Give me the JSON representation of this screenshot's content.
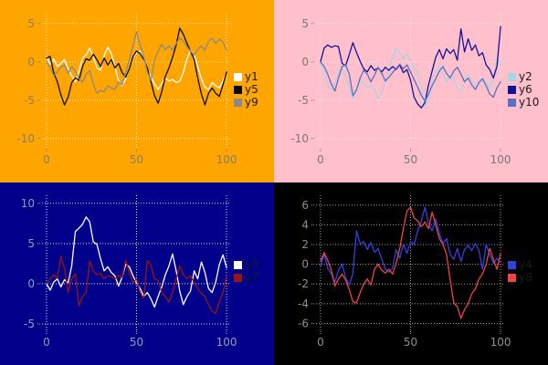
{
  "chart_data": [
    {
      "type": "line",
      "name": "top-left",
      "background": "#FFA500",
      "grid_color": "#f2e8d2",
      "tick_color": "#857f6e",
      "legend_text_color": "#1a1a1a",
      "grid": true,
      "legend_position": "center right",
      "xlim": [
        -2.5,
        102
      ],
      "ylim": [
        -11.2,
        6.4
      ],
      "xticks": [
        {
          "value": 0,
          "label": "0"
        },
        {
          "value": 50,
          "label": "50"
        },
        {
          "value": 100,
          "label": "100"
        }
      ],
      "yticks": [
        {
          "value": 5,
          "label": "5"
        },
        {
          "value": 0,
          "label": "0"
        },
        {
          "value": -5,
          "label": "-5"
        },
        {
          "value": -10,
          "label": "-10"
        }
      ],
      "series": [
        {
          "name": "y1",
          "color": "#ffffff",
          "x_step": 2,
          "values": [
            0.7,
            -0.3,
            0.4,
            -0.6,
            -0.2,
            0.3,
            -0.9,
            -1.8,
            -2.6,
            -1.2,
            0.5,
            0.9,
            1.8,
            0.6,
            -0.8,
            -1.1,
            0.8,
            1.9,
            1.1,
            -0.6,
            -2.5,
            -3.1,
            -2.2,
            -0.8,
            0.6,
            1.2,
            1.4,
            0.2,
            -1.0,
            -1.9,
            -2.9,
            -3.6,
            -2.8,
            -2.1,
            -2.5,
            -2.3,
            -2.7,
            -2.5,
            -1.4,
            0.4,
            1.5,
            0.9,
            -0.6,
            -2.2,
            -3.3,
            -3.6,
            -2.7,
            -3.1,
            -3.4,
            -2.5,
            -1.4
          ]
        },
        {
          "name": "y5",
          "color": "#0a0a0a",
          "x_step": 2,
          "values": [
            0.5,
            0.7,
            -1.4,
            -2.6,
            -4.3,
            -5.6,
            -4.6,
            -2.7,
            -2.1,
            -2.4,
            -0.6,
            0.4,
            0.2,
            1.0,
            0.3,
            -0.6,
            0.5,
            -0.4,
            0.3,
            -0.8,
            -0.2,
            -1.4,
            -2.0,
            -0.9,
            0.7,
            1.4,
            1.1,
            0.3,
            -0.8,
            -2.6,
            -4.4,
            -5.4,
            -3.9,
            -1.9,
            -0.8,
            0.6,
            2.2,
            4.4,
            3.6,
            2.4,
            1.4,
            0.3,
            -2.1,
            -4.2,
            -5.6,
            -4.1,
            -3.4,
            -4.1,
            -4.5,
            -3.0,
            -1.3
          ]
        },
        {
          "name": "y9",
          "color": "#8a8a8a",
          "x_step": 2,
          "values": [
            0.0,
            -0.7,
            -1.8,
            -1.3,
            -0.7,
            -0.4,
            -1.5,
            -0.6,
            -1.2,
            -2.2,
            -2.6,
            -1.6,
            -1.1,
            -2.9,
            -4.1,
            -3.7,
            -3.9,
            -3.1,
            -3.4,
            -3.6,
            -2.6,
            -3.0,
            -1.4,
            0.3,
            2.1,
            3.9,
            2.2,
            0.6,
            -1.3,
            -2.4,
            0.3,
            1.4,
            2.3,
            1.6,
            2.1,
            1.5,
            2.4,
            3.1,
            2.7,
            2.0,
            1.4,
            0.9,
            1.6,
            2.1,
            1.5,
            2.7,
            3.1,
            2.4,
            3.0,
            2.6,
            1.5
          ]
        }
      ]
    },
    {
      "type": "line",
      "name": "top-right",
      "background": "#FFC0CB",
      "grid_color": "#e9e9f0",
      "tick_color": "#77777c",
      "legend_text_color": "#1a1a1a",
      "grid": true,
      "legend_position": "center right",
      "xlim": [
        -2.5,
        102
      ],
      "ylim": [
        -11.2,
        6.4
      ],
      "xticks": [
        {
          "value": 0,
          "label": "0"
        },
        {
          "value": 50,
          "label": "50"
        },
        {
          "value": 100,
          "label": "100"
        }
      ],
      "yticks": [
        {
          "value": 5,
          "label": "5"
        },
        {
          "value": 0,
          "label": "0"
        },
        {
          "value": -5,
          "label": "-5"
        },
        {
          "value": -10,
          "label": "-10"
        }
      ],
      "series": [
        {
          "name": "y2",
          "color": "#a9d5e8",
          "x_step": 2,
          "values": [
            0.0,
            -1.4,
            -3.0,
            -3.7,
            -2.9,
            -1.3,
            -0.8,
            -1.9,
            -3.3,
            -4.7,
            -3.8,
            -2.2,
            -2.8,
            -3.4,
            -3.0,
            -3.6,
            -4.8,
            -3.9,
            -2.4,
            -1.0,
            0.6,
            1.7,
            1.2,
            0.4,
            1.0,
            0.3,
            -0.8,
            -1.6,
            -3.2,
            -5.9,
            -4.6,
            -2.6,
            -1.2,
            -0.6,
            -1.6,
            -2.6,
            -1.8,
            -2.4,
            -3.3,
            -3.8,
            -2.7,
            -1.6,
            -2.4,
            -3.4,
            -2.9,
            -2.1,
            -2.7,
            -3.4,
            -2.3,
            0.6,
            -0.4
          ]
        },
        {
          "name": "y6",
          "color": "#12129b",
          "x_step": 2,
          "values": [
            0.0,
            1.8,
            2.2,
            1.9,
            2.1,
            2.0,
            -0.2,
            -0.5,
            1.0,
            2.5,
            1.2,
            0.1,
            -0.9,
            -1.3,
            -0.5,
            -1.1,
            -0.8,
            -1.3,
            -0.7,
            -1.1,
            -0.6,
            -1.0,
            -0.4,
            -1.4,
            -1.0,
            -2.4,
            -4.6,
            -5.5,
            -6.0,
            -5.3,
            -3.0,
            -1.2,
            0.6,
            1.6,
            0.4,
            1.7,
            1.1,
            1.6,
            0.2,
            4.3,
            1.3,
            3.0,
            1.5,
            2.2,
            0.8,
            1.2,
            -0.4,
            -1.0,
            -2.1,
            -0.6,
            4.6
          ]
        },
        {
          "name": "y10",
          "color": "#5a6ec2",
          "x_step": 2,
          "values": [
            0.0,
            -0.6,
            -1.6,
            -2.9,
            -3.8,
            -2.1,
            -0.6,
            -0.4,
            -1.6,
            -4.4,
            -3.6,
            -2.1,
            -1.1,
            -1.6,
            -2.6,
            -1.7,
            -0.7,
            -1.5,
            -2.5,
            -2.0,
            -1.4,
            -0.9,
            -0.3,
            -0.9,
            -0.4,
            -1.3,
            -2.3,
            -3.3,
            -4.4,
            -5.1,
            -4.2,
            -3.1,
            -2.2,
            -1.2,
            -0.6,
            -1.5,
            -2.1,
            -1.2,
            -0.7,
            -1.6,
            -2.6,
            -2.1,
            -3.0,
            -3.6,
            -2.7,
            -2.2,
            -3.1,
            -4.2,
            -4.6,
            -3.4,
            -2.6
          ]
        }
      ]
    },
    {
      "type": "line",
      "name": "bottom-left",
      "background": "#00008B",
      "grid_color": "#d9d9ec",
      "tick_color": "#9a9aae",
      "legend_text_color": "#1a1a1a",
      "grid": true,
      "legend_position": "center right",
      "xlim": [
        -2.5,
        102
      ],
      "ylim": [
        -5.8,
        11.0
      ],
      "xticks": [
        {
          "value": 0,
          "label": "0"
        },
        {
          "value": 50,
          "label": "50"
        },
        {
          "value": 100,
          "label": "100"
        }
      ],
      "yticks": [
        {
          "value": 10,
          "label": "10"
        },
        {
          "value": 5,
          "label": "5"
        },
        {
          "value": 0,
          "label": "0"
        },
        {
          "value": -5,
          "label": "-5"
        }
      ],
      "series": [
        {
          "name": "y3",
          "color": "#fffbee",
          "x_step": 2,
          "values": [
            0.0,
            -0.8,
            0.2,
            0.6,
            -0.4,
            0.5,
            0.1,
            2.2,
            6.5,
            6.9,
            7.4,
            8.3,
            7.7,
            5.2,
            4.9,
            3.1,
            1.6,
            2.1,
            1.4,
            1.0,
            -0.3,
            0.8,
            2.4,
            2.1,
            1.0,
            0.1,
            -0.6,
            -1.6,
            -1.1,
            -1.9,
            -2.9,
            -1.6,
            -0.4,
            1.1,
            2.2,
            3.7,
            1.6,
            -0.9,
            -2.6,
            -1.6,
            -0.9,
            1.6,
            0.6,
            2.7,
            1.4,
            -0.6,
            -1.1,
            0.2,
            2.4,
            3.6,
            2.0
          ]
        },
        {
          "name": "y7",
          "color": "#9a1414",
          "x_step": 2,
          "values": [
            0.0,
            0.6,
            1.1,
            0.7,
            3.4,
            1.9,
            -1.1,
            0.6,
            1.2,
            -2.7,
            -1.6,
            -1.1,
            2.8,
            1.6,
            1.1,
            1.3,
            0.6,
            1.0,
            0.9,
            0.6,
            1.0,
            0.8,
            2.9,
            1.4,
            0.1,
            0.6,
            -1.1,
            -1.8,
            2.9,
            2.3,
            0.6,
            0.4,
            -1.1,
            -1.6,
            -2.3,
            -1.1,
            0.6,
            2.2,
            1.1,
            0.6,
            1.0,
            0.1,
            -0.6,
            -1.2,
            -1.6,
            -2.6,
            -3.4,
            -3.7,
            -2.2,
            -1.1,
            1.0
          ]
        }
      ]
    },
    {
      "type": "line",
      "name": "bottom-right",
      "background": "#000000",
      "grid_color": "#a3a3a3",
      "tick_color": "#8f8f8f",
      "legend_text_color": "#1a1a1a",
      "grid": true,
      "legend_position": "center right",
      "xlim": [
        -2.5,
        102
      ],
      "ylim": [
        -6.7,
        7.0
      ],
      "xticks": [
        {
          "value": 0,
          "label": "0"
        },
        {
          "value": 50,
          "label": "50"
        },
        {
          "value": 100,
          "label": "100"
        }
      ],
      "yticks": [
        {
          "value": 6,
          "label": "6"
        },
        {
          "value": 4,
          "label": "4"
        },
        {
          "value": 2,
          "label": "2"
        },
        {
          "value": 0,
          "label": "0"
        },
        {
          "value": -2,
          "label": "-2"
        },
        {
          "value": -4,
          "label": "-4"
        },
        {
          "value": -6,
          "label": "-6"
        }
      ],
      "series": [
        {
          "name": "y4",
          "color": "#3440e0",
          "x_step": 2,
          "values": [
            -0.2,
            1.0,
            -0.4,
            -1.0,
            -1.8,
            -0.6,
            0.0,
            -1.4,
            -2.1,
            -0.9,
            3.4,
            2.1,
            2.3,
            1.5,
            2.2,
            1.2,
            1.6,
            0.5,
            -0.5,
            -0.8,
            -0.4,
            1.5,
            0.6,
            2.0,
            1.1,
            2.3,
            2.0,
            3.4,
            4.4,
            5.8,
            4.1,
            3.4,
            4.6,
            3.1,
            2.1,
            2.6,
            1.0,
            0.5,
            1.6,
            0.3,
            1.5,
            1.9,
            1.4,
            2.1,
            1.4,
            -0.5,
            2.0,
            1.0,
            0.1,
            0.6,
            0.2
          ]
        },
        {
          "name": "y8",
          "color": "#ef4440",
          "x_step": 2,
          "values": [
            0.3,
            1.2,
            0.4,
            -0.6,
            -2.2,
            -1.5,
            -1.0,
            -1.6,
            -2.6,
            -3.8,
            -3.9,
            -2.9,
            -2.0,
            -1.5,
            -2.1,
            -0.5,
            0.0,
            -0.6,
            -0.9,
            -0.5,
            -1.0,
            0.1,
            1.6,
            3.6,
            5.4,
            5.8,
            4.7,
            4.4,
            3.8,
            4.3,
            3.6,
            5.3,
            4.0,
            2.6,
            2.0,
            1.0,
            -1.6,
            -3.9,
            -4.3,
            -5.5,
            -4.6,
            -4.0,
            -3.0,
            -2.5,
            -1.5,
            -1.0,
            0.0,
            1.6,
            0.5,
            -0.5,
            1.1
          ]
        }
      ]
    }
  ]
}
